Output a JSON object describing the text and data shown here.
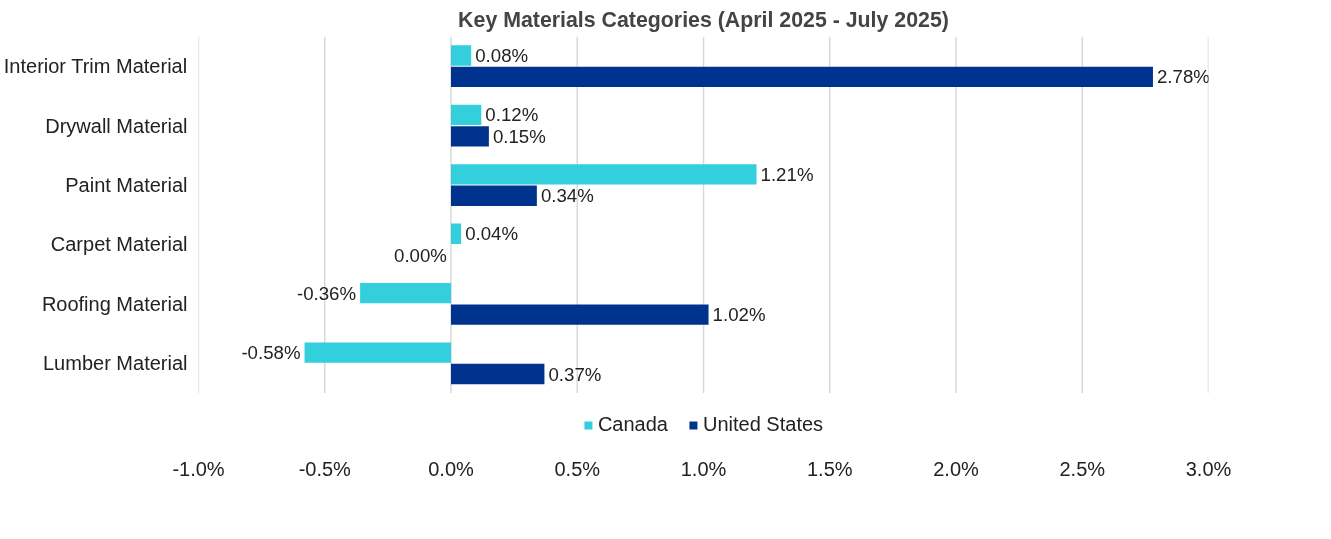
{
  "chart_data": {
    "type": "bar",
    "orientation": "horizontal",
    "title": "Key Materials Categories (April 2025 - July 2025)",
    "categories": [
      "Interior Trim Material",
      "Drywall Material",
      "Paint Material",
      "Carpet Material",
      "Roofing Material",
      "Lumber Material"
    ],
    "series": [
      {
        "name": "Canada",
        "color": "#33cfdc",
        "values": [
          0.08,
          0.12,
          1.21,
          0.04,
          -0.36,
          -0.58
        ],
        "value_labels": [
          "0.08%",
          "0.12%",
          "1.21%",
          "0.04%",
          "-0.36%",
          "-0.58%"
        ]
      },
      {
        "name": "United States",
        "color": "#00338d",
        "values": [
          2.78,
          0.15,
          0.34,
          0.0,
          1.02,
          0.37
        ],
        "value_labels": [
          "2.78%",
          "0.15%",
          "0.34%",
          "0.00%",
          "1.02%",
          "0.37%"
        ]
      }
    ],
    "xlim": [
      -1.0,
      3.0
    ],
    "xticks": [
      {
        "value": -1.0,
        "label": "-1.0%"
      },
      {
        "value": -0.5,
        "label": "-0.5%"
      },
      {
        "value": 0.0,
        "label": "0.0%"
      },
      {
        "value": 0.5,
        "label": "0.5%"
      },
      {
        "value": 1.0,
        "label": "1.0%"
      },
      {
        "value": 1.5,
        "label": "1.5%"
      },
      {
        "value": 2.0,
        "label": "2.0%"
      },
      {
        "value": 2.5,
        "label": "2.5%"
      },
      {
        "value": 3.0,
        "label": "3.0%"
      }
    ],
    "grid": "x",
    "legend": "bottom"
  }
}
